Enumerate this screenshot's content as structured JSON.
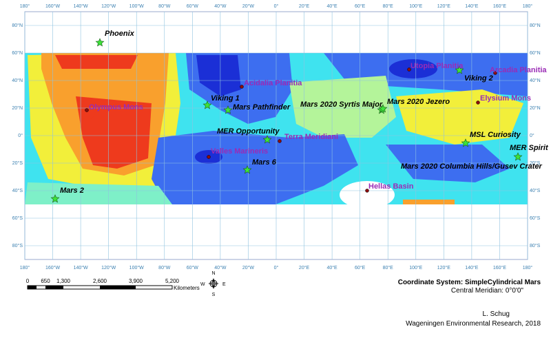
{
  "map": {
    "lon_labels": [
      "180°",
      "160°W",
      "140°W",
      "120°W",
      "100°W",
      "80°W",
      "60°W",
      "40°W",
      "20°W",
      "0°",
      "20°E",
      "40°E",
      "60°E",
      "80°E",
      "100°E",
      "120°E",
      "140°E",
      "160°E",
      "180°"
    ],
    "lat_labels": [
      "80°N",
      "60°N",
      "40°N",
      "20°N",
      "0°",
      "20°S",
      "40°S",
      "60°S",
      "80°S"
    ],
    "landing_sites": [
      {
        "name": "Phoenix"
      },
      {
        "name": "Viking 1"
      },
      {
        "name": "Mars Pathfinder"
      },
      {
        "name": "MER Opportunity"
      },
      {
        "name": "Mars 6"
      },
      {
        "name": "Mars 2"
      },
      {
        "name": "Viking 2"
      },
      {
        "name": "Mars 2020 Syrtis Major"
      },
      {
        "name": "Mars 2020 Jezero"
      },
      {
        "name": "MSL Curiosity"
      },
      {
        "name": "MER Spirit"
      },
      {
        "name": "Mars 2020 Columbia Hills/Gusev Crater"
      }
    ],
    "features": [
      {
        "name": "Olympus Mons"
      },
      {
        "name": "Acidalia Planitia"
      },
      {
        "name": "Terra Meridiani"
      },
      {
        "name": "Valles Marineris"
      },
      {
        "name": "Hellas Basin"
      },
      {
        "name": "Utopia Planitia"
      },
      {
        "name": "Arcadia Planitia"
      },
      {
        "name": "Elysium Mons"
      }
    ],
    "scale_bar": {
      "labels": [
        "0",
        "650",
        "1,300",
        "2,600",
        "3,900",
        "5,200"
      ],
      "unit": "Kilometers"
    },
    "compass": {
      "n": "N",
      "s": "S",
      "e": "E",
      "w": "W"
    },
    "coordinate_system": "Coordinate System: SimpleCylindrical Mars",
    "central_meridian": "Central Meridian: 0°0'0\"",
    "author": "L. Schug",
    "organization": "Wageningen Environmental Research, 2018"
  }
}
